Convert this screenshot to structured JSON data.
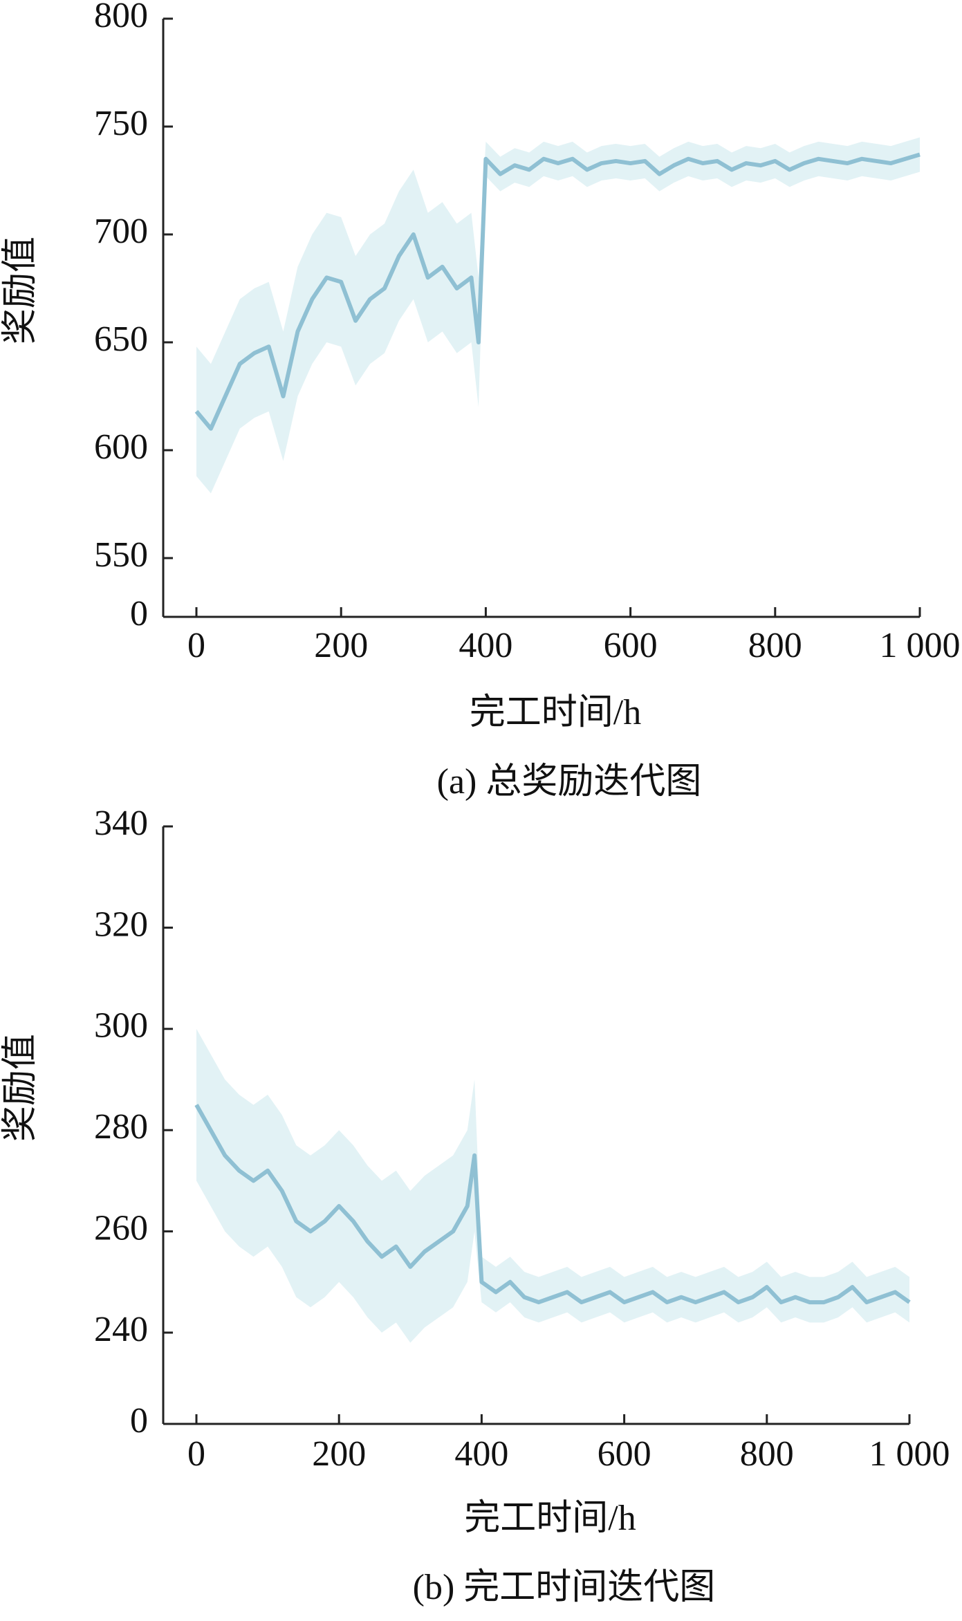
{
  "chart_data": [
    {
      "type": "line",
      "caption": "(a) 总奖励迭代图",
      "x_label": "完工时间/h",
      "y_label": "奖励值",
      "color": "#8fc0d3",
      "band_color": "#e2f2f5",
      "xlim": [
        0,
        1000
      ],
      "ylim": [
        0,
        800
      ],
      "xticks": [
        0,
        200,
        400,
        600,
        800,
        {
          "value": 1000,
          "label": "1 000"
        }
      ],
      "yticks": [
        0,
        550,
        600,
        650,
        700,
        750,
        800
      ],
      "x": [
        0,
        20,
        40,
        60,
        80,
        100,
        120,
        140,
        160,
        180,
        200,
        220,
        240,
        260,
        280,
        300,
        320,
        340,
        360,
        380,
        390,
        400,
        420,
        440,
        460,
        480,
        500,
        520,
        540,
        560,
        580,
        600,
        620,
        640,
        660,
        680,
        700,
        720,
        740,
        760,
        780,
        800,
        820,
        840,
        860,
        880,
        900,
        920,
        940,
        960,
        980,
        1000
      ],
      "values": [
        618,
        610,
        625,
        640,
        645,
        648,
        625,
        655,
        670,
        680,
        678,
        660,
        670,
        675,
        690,
        700,
        680,
        685,
        675,
        680,
        650,
        735,
        728,
        732,
        730,
        735,
        733,
        735,
        730,
        733,
        734,
        733,
        734,
        728,
        732,
        735,
        733,
        734,
        730,
        733,
        732,
        734,
        730,
        733,
        735,
        734,
        733,
        735,
        734,
        733,
        735,
        737
      ],
      "band_low": [
        588,
        580,
        595,
        610,
        615,
        618,
        595,
        625,
        640,
        650,
        648,
        630,
        640,
        645,
        660,
        670,
        650,
        655,
        645,
        650,
        620,
        727,
        720,
        724,
        722,
        727,
        725,
        727,
        722,
        725,
        726,
        725,
        726,
        720,
        724,
        727,
        725,
        726,
        722,
        725,
        724,
        726,
        722,
        725,
        727,
        726,
        725,
        727,
        726,
        725,
        727,
        729
      ],
      "band_high": [
        648,
        640,
        655,
        670,
        675,
        678,
        655,
        685,
        700,
        710,
        708,
        690,
        700,
        705,
        720,
        730,
        710,
        715,
        705,
        710,
        680,
        743,
        736,
        740,
        738,
        743,
        741,
        743,
        738,
        741,
        742,
        741,
        742,
        736,
        740,
        743,
        741,
        742,
        738,
        741,
        740,
        742,
        738,
        741,
        743,
        742,
        741,
        743,
        742,
        741,
        743,
        745
      ]
    },
    {
      "type": "line",
      "caption": "(b) 完工时间迭代图",
      "x_label": "完工时间/h",
      "y_label": "奖励值",
      "color": "#8fc0d3",
      "band_color": "#e2f2f5",
      "xlim": [
        0,
        1000
      ],
      "ylim": [
        0,
        340
      ],
      "xticks": [
        0,
        200,
        400,
        600,
        800,
        {
          "value": 1000,
          "label": "1 000"
        }
      ],
      "yticks": [
        0,
        240,
        260,
        280,
        300,
        320,
        340
      ],
      "x": [
        0,
        20,
        40,
        60,
        80,
        100,
        120,
        140,
        160,
        180,
        200,
        220,
        240,
        260,
        280,
        300,
        320,
        340,
        360,
        380,
        390,
        400,
        420,
        440,
        460,
        480,
        500,
        520,
        540,
        560,
        580,
        600,
        620,
        640,
        660,
        680,
        700,
        720,
        740,
        760,
        780,
        800,
        820,
        840,
        860,
        880,
        900,
        920,
        940,
        960,
        980,
        1000
      ],
      "values": [
        285,
        280,
        275,
        272,
        270,
        272,
        268,
        262,
        260,
        262,
        265,
        262,
        258,
        255,
        257,
        253,
        256,
        258,
        260,
        265,
        275,
        250,
        248,
        250,
        247,
        246,
        247,
        248,
        246,
        247,
        248,
        246,
        247,
        248,
        246,
        247,
        246,
        247,
        248,
        246,
        247,
        249,
        246,
        247,
        246,
        246,
        247,
        249,
        246,
        247,
        248,
        246
      ],
      "band_low": [
        270,
        265,
        260,
        257,
        255,
        257,
        253,
        247,
        245,
        247,
        250,
        247,
        243,
        240,
        242,
        238,
        241,
        243,
        245,
        250,
        260,
        246,
        244,
        246,
        243,
        242,
        243,
        244,
        242,
        243,
        244,
        242,
        243,
        244,
        242,
        243,
        242,
        243,
        244,
        242,
        243,
        245,
        242,
        243,
        242,
        242,
        243,
        245,
        242,
        243,
        244,
        242
      ],
      "band_high": [
        300,
        295,
        290,
        287,
        285,
        287,
        283,
        277,
        275,
        277,
        280,
        277,
        273,
        270,
        272,
        268,
        271,
        273,
        275,
        280,
        290,
        255,
        253,
        255,
        252,
        251,
        252,
        253,
        251,
        252,
        253,
        251,
        252,
        253,
        251,
        252,
        251,
        252,
        253,
        251,
        252,
        254,
        251,
        252,
        251,
        251,
        252,
        254,
        251,
        252,
        253,
        251
      ]
    }
  ]
}
